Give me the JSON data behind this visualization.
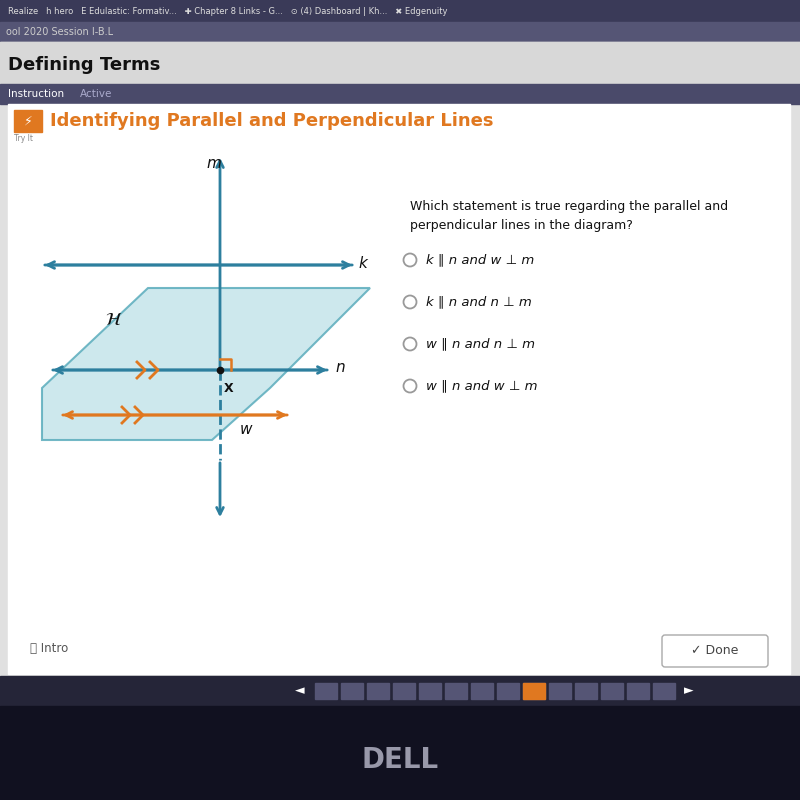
{
  "title": "Identifying Parallel and Perpendicular Lines",
  "title_color": "#e07820",
  "question_text": "Which statement is true regarding the parallel and\nperpendicular lines in the diagram?",
  "options": [
    "k ∥ n and w ⊥ m",
    "k ∥ n and n ⊥ m",
    "w ∥ n and n ⊥ m",
    "w ∥ n and w ⊥ m"
  ],
  "line_k_color": "#2d7f9e",
  "line_m_color": "#2d7f9e",
  "line_n_color": "#2d7f9e",
  "line_w_color": "#e07820",
  "para_fill": "#c5e5ea",
  "para_edge": "#5aacbc",
  "right_angle_color": "#e07820",
  "chevron_color": "#e07820",
  "bg_outer": "#1e1e30",
  "bg_content": "#e0e0e0",
  "bg_card": "#ffffff",
  "tab_bar_color": "#4a4a6a",
  "nav_bar_color": "#252538",
  "bottom_color": "#111120",
  "toolbar_color": "#3a3a58"
}
